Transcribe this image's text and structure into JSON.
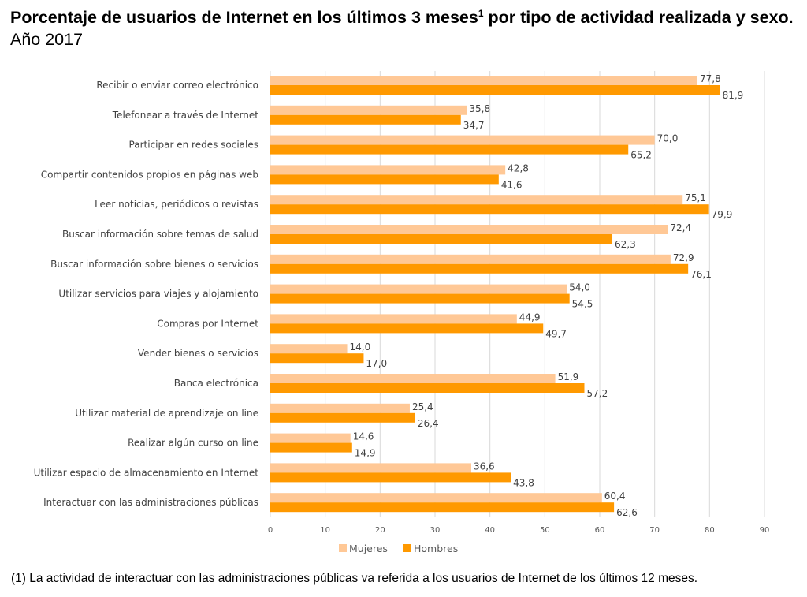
{
  "title": {
    "bold_part1": "Porcentaje de usuarios de Internet en los últimos 3 meses",
    "superscript": "1",
    "bold_part2": " por tipo de actividad realizada y sexo.",
    "normal_part": " Año 2017"
  },
  "footnote": "(1)  La actividad de interactuar con las administraciones públicas va referida a los usuarios de Internet de los últimos 12 meses.",
  "chart_data": {
    "type": "bar",
    "orientation": "horizontal",
    "categories": [
      "Recibir o enviar correo electrónico",
      "Telefonear a través de Internet",
      "Participar en redes sociales",
      "Compartir contenidos propios en páginas web",
      "Leer noticias, periódicos o revistas",
      "Buscar información sobre temas de salud",
      "Buscar información sobre bienes o servicios",
      "Utilizar servicios para viajes y alojamiento",
      "Compras por Internet",
      "Vender bienes o servicios",
      "Banca electrónica",
      "Utilizar material de aprendizaje on line",
      "Realizar algún curso on line",
      "Utilizar espacio de almacenamiento en Internet",
      "Interactuar con las administraciones públicas"
    ],
    "series": [
      {
        "name": "Mujeres",
        "color": "#FFC896",
        "values": [
          77.8,
          35.8,
          70.0,
          42.8,
          75.1,
          72.4,
          72.9,
          54.0,
          44.9,
          14.0,
          51.9,
          25.4,
          14.6,
          36.6,
          60.4
        ]
      },
      {
        "name": "Hombres",
        "color": "#FF9900",
        "values": [
          81.9,
          34.7,
          65.2,
          41.6,
          79.9,
          62.3,
          76.1,
          54.5,
          49.7,
          17.0,
          57.2,
          26.4,
          14.9,
          43.8,
          62.6
        ]
      }
    ],
    "xlim": [
      0,
      90
    ],
    "xticks": [
      "0",
      "10",
      "20",
      "30",
      "40",
      "50",
      "60",
      "70",
      "80",
      "90"
    ],
    "grid": true,
    "legend": "bottom",
    "data_labels": true,
    "decimal_separator": ","
  }
}
